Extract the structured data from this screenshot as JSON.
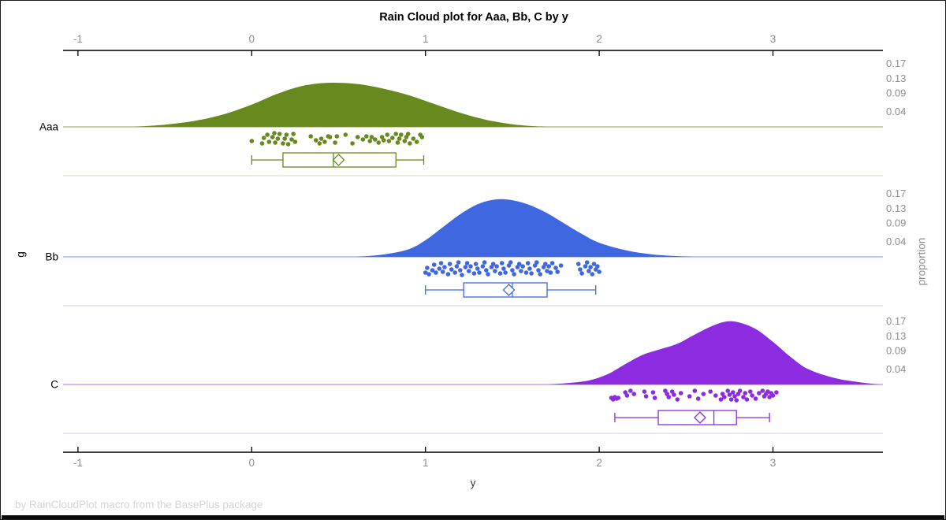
{
  "chart_data": {
    "type": "raincloud",
    "title": "Rain Cloud plot for Aaa, Bb, C by y",
    "xlabel": "y",
    "ylabel": "g",
    "y2label": "proportion",
    "footer": "by RainCloudPlot macro from the BasePlus package",
    "x_ticks": [
      -1,
      0,
      1,
      2,
      3
    ],
    "x_range": [
      -1.09,
      3.64
    ],
    "proportion_ticks": [
      0.17,
      0.13,
      0.09,
      0.04
    ],
    "grid": false,
    "legend": "none",
    "axis_color": "#000000",
    "tick_label_color": "#8f8f8f",
    "groups": [
      {
        "name": "Aaa",
        "color": "#67891e",
        "baseline_color": "#b3c18c",
        "separator_color": "#e0e5cd",
        "density": [
          [
            -0.68,
            0
          ],
          [
            -0.5,
            0.006
          ],
          [
            -0.33,
            0.016
          ],
          [
            -0.16,
            0.034
          ],
          [
            0.0,
            0.06
          ],
          [
            0.14,
            0.088
          ],
          [
            0.27,
            0.108
          ],
          [
            0.38,
            0.117
          ],
          [
            0.5,
            0.119
          ],
          [
            0.62,
            0.115
          ],
          [
            0.75,
            0.104
          ],
          [
            0.9,
            0.086
          ],
          [
            1.05,
            0.062
          ],
          [
            1.2,
            0.038
          ],
          [
            1.35,
            0.019
          ],
          [
            1.5,
            0.007
          ],
          [
            1.62,
            0.002
          ],
          [
            1.7,
            0
          ]
        ],
        "box": {
          "whisker_low": 0.0,
          "q1": 0.18,
          "median": 0.47,
          "mean": 0.5,
          "q3": 0.83,
          "whisker_high": 0.99
        },
        "points": [
          [
            0.0,
            18
          ],
          [
            0.06,
            21
          ],
          [
            0.07,
            14
          ],
          [
            0.09,
            10
          ],
          [
            0.1,
            19
          ],
          [
            0.12,
            13
          ],
          [
            0.13,
            8
          ],
          [
            0.135,
            20
          ],
          [
            0.15,
            15
          ],
          [
            0.16,
            9
          ],
          [
            0.18,
            21
          ],
          [
            0.19,
            15
          ],
          [
            0.2,
            10
          ],
          [
            0.21,
            22
          ],
          [
            0.23,
            16
          ],
          [
            0.24,
            9
          ],
          [
            0.25,
            19
          ],
          [
            0.34,
            12
          ],
          [
            0.37,
            17
          ],
          [
            0.39,
            21
          ],
          [
            0.4,
            15
          ],
          [
            0.42,
            19
          ],
          [
            0.44,
            12
          ],
          [
            0.45,
            13
          ],
          [
            0.48,
            20
          ],
          [
            0.49,
            12
          ],
          [
            0.54,
            10
          ],
          [
            0.58,
            21
          ],
          [
            0.61,
            13
          ],
          [
            0.64,
            16
          ],
          [
            0.66,
            12
          ],
          [
            0.68,
            18
          ],
          [
            0.69,
            13
          ],
          [
            0.71,
            16
          ],
          [
            0.73,
            20
          ],
          [
            0.75,
            13
          ],
          [
            0.76,
            17
          ],
          [
            0.78,
            10
          ],
          [
            0.79,
            18
          ],
          [
            0.81,
            14
          ],
          [
            0.83,
            9
          ],
          [
            0.84,
            20
          ],
          [
            0.85,
            15
          ],
          [
            0.86,
            10
          ],
          [
            0.88,
            18
          ],
          [
            0.89,
            13
          ],
          [
            0.9,
            9
          ],
          [
            0.91,
            21
          ],
          [
            0.93,
            15
          ],
          [
            0.95,
            19
          ],
          [
            0.97,
            10
          ],
          [
            0.98,
            13
          ]
        ]
      },
      {
        "name": "Bb",
        "color": "#3f68e0",
        "baseline_color": "#a5baee",
        "separator_color": "#d4ddf6",
        "density": [
          [
            0.6,
            0
          ],
          [
            0.75,
            0.006
          ],
          [
            0.9,
            0.02
          ],
          [
            1.0,
            0.045
          ],
          [
            1.1,
            0.08
          ],
          [
            1.2,
            0.115
          ],
          [
            1.3,
            0.142
          ],
          [
            1.4,
            0.155
          ],
          [
            1.5,
            0.153
          ],
          [
            1.6,
            0.14
          ],
          [
            1.7,
            0.118
          ],
          [
            1.8,
            0.09
          ],
          [
            1.9,
            0.062
          ],
          [
            2.0,
            0.038
          ],
          [
            2.15,
            0.018
          ],
          [
            2.3,
            0.007
          ],
          [
            2.45,
            0.002
          ],
          [
            2.55,
            0
          ]
        ],
        "box": {
          "whisker_low": 1.0,
          "q1": 1.22,
          "median": 1.5,
          "mean": 1.48,
          "q3": 1.7,
          "whisker_high": 1.98
        },
        "points": [
          [
            1.0,
            20
          ],
          [
            1.01,
            14
          ],
          [
            1.02,
            22
          ],
          [
            1.04,
            17
          ],
          [
            1.05,
            10
          ],
          [
            1.06,
            20
          ],
          [
            1.08,
            15
          ],
          [
            1.09,
            8
          ],
          [
            1.1,
            19
          ],
          [
            1.11,
            13
          ],
          [
            1.13,
            22
          ],
          [
            1.14,
            9
          ],
          [
            1.15,
            16
          ],
          [
            1.17,
            20
          ],
          [
            1.18,
            12
          ],
          [
            1.19,
            7
          ],
          [
            1.2,
            17
          ],
          [
            1.21,
            23
          ],
          [
            1.23,
            13
          ],
          [
            1.24,
            8
          ],
          [
            1.25,
            18
          ],
          [
            1.26,
            12
          ],
          [
            1.28,
            21
          ],
          [
            1.29,
            9
          ],
          [
            1.3,
            15
          ],
          [
            1.31,
            20
          ],
          [
            1.33,
            12
          ],
          [
            1.34,
            7
          ],
          [
            1.35,
            17
          ],
          [
            1.36,
            22
          ],
          [
            1.38,
            13
          ],
          [
            1.39,
            9
          ],
          [
            1.4,
            18
          ],
          [
            1.41,
            12
          ],
          [
            1.43,
            21
          ],
          [
            1.44,
            8
          ],
          [
            1.45,
            15
          ],
          [
            1.46,
            20
          ],
          [
            1.48,
            11
          ],
          [
            1.49,
            7
          ],
          [
            1.5,
            17
          ],
          [
            1.51,
            22
          ],
          [
            1.53,
            13
          ],
          [
            1.54,
            9
          ],
          [
            1.55,
            18
          ],
          [
            1.56,
            12
          ],
          [
            1.58,
            20
          ],
          [
            1.59,
            8
          ],
          [
            1.6,
            15
          ],
          [
            1.61,
            21
          ],
          [
            1.63,
            11
          ],
          [
            1.64,
            7
          ],
          [
            1.65,
            17
          ],
          [
            1.66,
            22
          ],
          [
            1.68,
            13
          ],
          [
            1.69,
            9
          ],
          [
            1.7,
            18
          ],
          [
            1.71,
            12
          ],
          [
            1.72,
            20
          ],
          [
            1.73,
            8
          ],
          [
            1.75,
            14
          ],
          [
            1.76,
            19
          ],
          [
            1.78,
            11
          ],
          [
            1.88,
            9
          ],
          [
            1.89,
            16
          ],
          [
            1.9,
            21
          ],
          [
            1.92,
            12
          ],
          [
            1.93,
            7
          ],
          [
            1.94,
            18
          ],
          [
            1.95,
            13
          ],
          [
            1.96,
            22
          ],
          [
            1.97,
            9
          ],
          [
            1.98,
            16
          ],
          [
            1.99,
            12
          ],
          [
            2.0,
            19
          ]
        ]
      },
      {
        "name": "C",
        "color": "#8c2be0",
        "baseline_color": "#cba3ec",
        "separator_color": "#e8d8f7",
        "density": [
          [
            1.7,
            0
          ],
          [
            1.85,
            0.005
          ],
          [
            1.95,
            0.012
          ],
          [
            2.05,
            0.028
          ],
          [
            2.15,
            0.055
          ],
          [
            2.25,
            0.08
          ],
          [
            2.35,
            0.095
          ],
          [
            2.45,
            0.11
          ],
          [
            2.55,
            0.135
          ],
          [
            2.65,
            0.158
          ],
          [
            2.73,
            0.17
          ],
          [
            2.8,
            0.168
          ],
          [
            2.9,
            0.15
          ],
          [
            3.0,
            0.115
          ],
          [
            3.1,
            0.075
          ],
          [
            3.2,
            0.042
          ],
          [
            3.35,
            0.018
          ],
          [
            3.5,
            0.006
          ],
          [
            3.62,
            0
          ]
        ],
        "box": {
          "whisker_low": 2.09,
          "q1": 2.34,
          "median": 2.66,
          "mean": 2.58,
          "q3": 2.79,
          "whisker_high": 2.98
        },
        "points": [
          [
            2.07,
            17
          ],
          [
            2.08,
            19
          ],
          [
            2.09,
            16
          ],
          [
            2.1,
            18
          ],
          [
            2.11,
            17
          ],
          [
            2.15,
            10
          ],
          [
            2.16,
            14
          ],
          [
            2.18,
            8
          ],
          [
            2.2,
            12
          ],
          [
            2.26,
            9
          ],
          [
            2.27,
            15
          ],
          [
            2.31,
            10
          ],
          [
            2.32,
            17
          ],
          [
            2.38,
            8
          ],
          [
            2.39,
            12
          ],
          [
            2.4,
            16
          ],
          [
            2.42,
            9
          ],
          [
            2.43,
            13
          ],
          [
            2.45,
            19
          ],
          [
            2.47,
            11
          ],
          [
            2.52,
            15
          ],
          [
            2.55,
            8
          ],
          [
            2.57,
            18
          ],
          [
            2.6,
            12
          ],
          [
            2.64,
            9
          ],
          [
            2.67,
            14
          ],
          [
            2.7,
            19
          ],
          [
            2.71,
            12
          ],
          [
            2.72,
            16
          ],
          [
            2.74,
            8
          ],
          [
            2.75,
            13
          ],
          [
            2.76,
            19
          ],
          [
            2.77,
            10
          ],
          [
            2.78,
            15
          ],
          [
            2.79,
            20
          ],
          [
            2.8,
            12
          ],
          [
            2.81,
            8
          ],
          [
            2.83,
            16
          ],
          [
            2.84,
            11
          ],
          [
            2.85,
            19
          ],
          [
            2.87,
            9
          ],
          [
            2.88,
            14
          ],
          [
            2.9,
            18
          ],
          [
            2.92,
            11
          ],
          [
            2.94,
            8
          ],
          [
            2.95,
            15
          ],
          [
            2.96,
            12
          ],
          [
            2.97,
            9
          ],
          [
            2.98,
            16
          ],
          [
            2.99,
            11
          ],
          [
            3.0,
            14
          ],
          [
            3.02,
            10
          ]
        ]
      }
    ]
  }
}
